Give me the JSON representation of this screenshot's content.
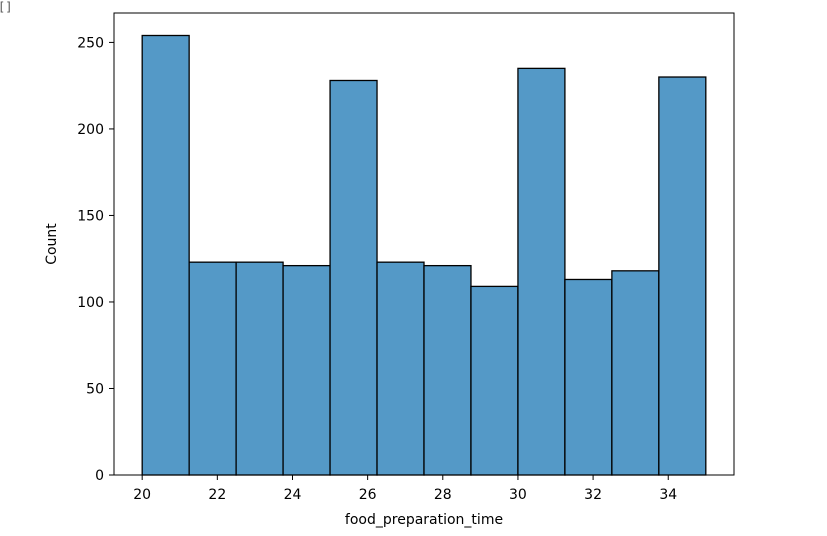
{
  "chart_data": {
    "type": "bar",
    "subtype": "histogram",
    "title": "",
    "xlabel": "food_preparation_time",
    "ylabel": "Count",
    "xlim": [
      19.25,
      35.75
    ],
    "ylim": [
      0,
      267
    ],
    "x_ticks": [
      20,
      22,
      24,
      26,
      28,
      30,
      32,
      34
    ],
    "y_ticks": [
      0,
      50,
      100,
      150,
      200,
      250
    ],
    "bin_edges": [
      20,
      21.25,
      22.5,
      23.75,
      25,
      26.25,
      27.5,
      28.75,
      30,
      31.25,
      32.5,
      33.75,
      35
    ],
    "values": [
      254,
      123,
      123,
      121,
      228,
      123,
      121,
      109,
      235,
      113,
      118,
      230
    ],
    "bar_color": "#5499c7",
    "edge_color": "#000000",
    "grid": false
  },
  "corner_icon": "cell-marker-icon",
  "corner_glyph": "[]"
}
